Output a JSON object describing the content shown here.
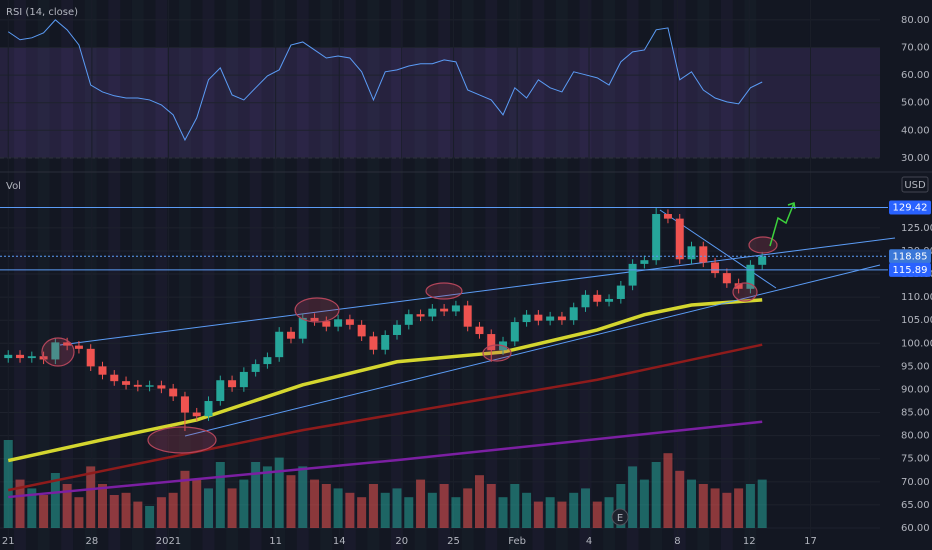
{
  "chart_data": {
    "type": "candlestick",
    "currency": "USD",
    "up_color": "#26a69a",
    "down_color": "#ef5350",
    "xlim": [
      -0.7,
      74
    ],
    "ylim": [
      57.4,
      135.8
    ],
    "xticks": [
      {
        "value": 0,
        "label": "21"
      },
      {
        "value": 7.1,
        "label": "28"
      },
      {
        "value": 13.6,
        "label": "2021"
      },
      {
        "value": 22.7,
        "label": "11"
      },
      {
        "value": 28.1,
        "label": "14"
      },
      {
        "value": 33.4,
        "label": "20"
      },
      {
        "value": 37.8,
        "label": "25"
      },
      {
        "value": 43.2,
        "label": "Feb"
      },
      {
        "value": 49.3,
        "label": "4"
      },
      {
        "value": 56.8,
        "label": "8"
      },
      {
        "value": 62.9,
        "label": "12"
      },
      {
        "value": 68.1,
        "label": "17"
      }
    ],
    "yticks": [
      {
        "value": 60,
        "label": "60.00"
      },
      {
        "value": 65,
        "label": "65.00"
      },
      {
        "value": 70,
        "label": "70.00"
      },
      {
        "value": 75,
        "label": "75.00"
      },
      {
        "value": 80,
        "label": "80.00"
      },
      {
        "value": 85,
        "label": "85.00"
      },
      {
        "value": 90,
        "label": "90.00"
      },
      {
        "value": 95,
        "label": "95.00"
      },
      {
        "value": 100,
        "label": "100.00"
      },
      {
        "value": 105,
        "label": "105.00"
      },
      {
        "value": 110,
        "label": "110.00"
      },
      {
        "value": 115,
        "label": "115.00"
      },
      {
        "value": 120,
        "label": "120.00"
      },
      {
        "value": 125,
        "label": "125.00"
      }
    ],
    "open": [
      96.8,
      97.5,
      96.8,
      97.2,
      96.5,
      100.2,
      99.5,
      98.8,
      95.0,
      93.2,
      91.8,
      91.0,
      90.6,
      90.9,
      90.2,
      88.5,
      85.0,
      84.2,
      87.5,
      92.0,
      90.5,
      93.8,
      95.5,
      97.0,
      102.5,
      101.0,
      105.5,
      104.8,
      103.6,
      105.2,
      104.0,
      101.5,
      98.6,
      101.8,
      104.0,
      106.3,
      105.8,
      107.5,
      106.9,
      108.2,
      103.6,
      102.0,
      98.5,
      100.4,
      104.6,
      106.2,
      104.9,
      105.8,
      105.0,
      107.8,
      110.5,
      109.0,
      109.6,
      112.5,
      117.2,
      118.0,
      128.0,
      127.0,
      118.2,
      121.0,
      117.5,
      115.2,
      113.0,
      111.8,
      117.0
    ],
    "high": [
      98.5,
      98.5,
      98.2,
      98.2,
      101.2,
      101.2,
      100.5,
      99.8,
      96.0,
      94.2,
      92.8,
      92.0,
      91.9,
      91.9,
      91.2,
      89.5,
      86.0,
      88.5,
      93.0,
      93.0,
      94.8,
      96.5,
      98.0,
      103.5,
      103.5,
      106.5,
      106.5,
      105.8,
      106.2,
      106.2,
      105.0,
      102.5,
      102.8,
      105.0,
      107.3,
      107.3,
      108.5,
      108.5,
      109.2,
      109.2,
      104.6,
      103.0,
      101.4,
      105.6,
      107.2,
      107.2,
      106.8,
      106.8,
      108.8,
      111.5,
      111.5,
      110.6,
      113.5,
      118.2,
      119.0,
      129.4,
      129.0,
      128.0,
      122.0,
      122.0,
      118.5,
      116.2,
      114.0,
      118.0,
      119.8
    ],
    "low": [
      95.8,
      95.8,
      95.8,
      95.5,
      95.5,
      98.5,
      97.8,
      94.0,
      92.2,
      90.8,
      90.0,
      89.6,
      89.6,
      89.2,
      87.5,
      81.0,
      83.2,
      83.2,
      86.5,
      89.5,
      89.5,
      92.8,
      94.5,
      96.0,
      100.0,
      100.0,
      103.8,
      102.6,
      102.6,
      103.0,
      100.5,
      97.6,
      97.6,
      100.8,
      103.0,
      104.8,
      104.8,
      105.9,
      105.9,
      102.6,
      101.0,
      96.0,
      97.5,
      99.4,
      103.6,
      103.9,
      103.9,
      104.0,
      104.0,
      106.8,
      108.0,
      108.0,
      108.6,
      111.5,
      116.2,
      117.0,
      126.0,
      117.2,
      117.2,
      116.5,
      114.2,
      112.0,
      110.8,
      110.8,
      116.0
    ],
    "close": [
      97.5,
      96.8,
      97.2,
      96.5,
      100.2,
      99.5,
      98.8,
      95.0,
      93.2,
      91.8,
      91.0,
      90.6,
      90.9,
      90.2,
      88.5,
      85.0,
      84.2,
      87.5,
      92.0,
      90.5,
      93.8,
      95.5,
      97.0,
      102.5,
      101.0,
      105.5,
      104.8,
      103.6,
      105.2,
      104.0,
      101.5,
      98.6,
      101.8,
      104.0,
      106.3,
      105.8,
      107.5,
      106.9,
      108.2,
      103.6,
      102.0,
      98.5,
      100.4,
      104.6,
      106.2,
      104.9,
      105.8,
      105.0,
      107.8,
      110.5,
      109.0,
      109.6,
      112.5,
      117.2,
      118.0,
      128.0,
      127.0,
      118.2,
      121.0,
      117.5,
      115.2,
      113.0,
      111.8,
      117.0,
      118.85
    ],
    "moving_averages": [
      {
        "color": "#d4d62f",
        "x": [
          0,
          8,
          16,
          25,
          33,
          42,
          50,
          54,
          58,
          64
        ],
        "values": [
          74.6,
          79.1,
          83.4,
          91.0,
          96.0,
          98.1,
          102.9,
          106.2,
          108.3,
          109.4
        ]
      },
      {
        "color": "#8e1b1b",
        "x": [
          0,
          25,
          50,
          64
        ],
        "values": [
          68.2,
          81.2,
          92.1,
          99.7
        ]
      },
      {
        "color": "#7b1fa2",
        "x": [
          0,
          33,
          64
        ],
        "values": [
          66.7,
          74.7,
          83.0
        ]
      }
    ],
    "price_lines": [
      {
        "value": 129.42,
        "color": "#2962ff"
      },
      {
        "value": 118.85,
        "color": "#3b78d8"
      },
      {
        "value": 115.89,
        "color": "#2962ff"
      }
    ],
    "events": [
      "E"
    ],
    "volume": {
      "label": "Vol",
      "vlim": [
        0,
        50
      ],
      "values": [
        40,
        22,
        18,
        15,
        25,
        20,
        14,
        28,
        20,
        15,
        16,
        12,
        10,
        14,
        16,
        26,
        22,
        18,
        30,
        18,
        22,
        30,
        28,
        32,
        24,
        28,
        22,
        20,
        18,
        16,
        14,
        20,
        16,
        18,
        14,
        22,
        16,
        20,
        14,
        18,
        24,
        20,
        14,
        20,
        16,
        12,
        14,
        12,
        16,
        18,
        12,
        14,
        20,
        28,
        22,
        30,
        34,
        26,
        22,
        20,
        18,
        16,
        18,
        20,
        22
      ]
    },
    "rsi": {
      "title": "RSI (14, close)",
      "color": "#5b9cf6",
      "ylim": [
        24.9,
        87.2
      ],
      "bands": [
        30,
        70
      ],
      "yticks": [
        {
          "value": 30,
          "label": "30.00"
        },
        {
          "value": 40,
          "label": "40.00"
        },
        {
          "value": 50,
          "label": "50.00"
        },
        {
          "value": 60,
          "label": "60.00"
        },
        {
          "value": 70,
          "label": "70.00"
        },
        {
          "value": 80,
          "label": "80.00"
        }
      ],
      "values": [
        75.7,
        72.8,
        73.5,
        75.3,
        80.0,
        76.4,
        70.9,
        56.4,
        53.9,
        52.5,
        51.7,
        51.7,
        51.0,
        49.2,
        45.6,
        36.5,
        44.5,
        58.3,
        62.6,
        52.8,
        51.0,
        55.4,
        59.7,
        61.9,
        70.9,
        72.0,
        69.1,
        66.2,
        66.9,
        66.2,
        61.2,
        51.0,
        61.2,
        61.9,
        63.3,
        64.1,
        64.1,
        65.5,
        64.8,
        54.6,
        52.8,
        51.0,
        45.6,
        55.4,
        51.7,
        58.3,
        55.4,
        53.9,
        61.2,
        60.1,
        59.0,
        56.4,
        64.8,
        68.4,
        69.1,
        76.4,
        77.1,
        58.3,
        61.2,
        54.6,
        51.7,
        50.3,
        49.6,
        55.4,
        57.5
      ]
    }
  }
}
